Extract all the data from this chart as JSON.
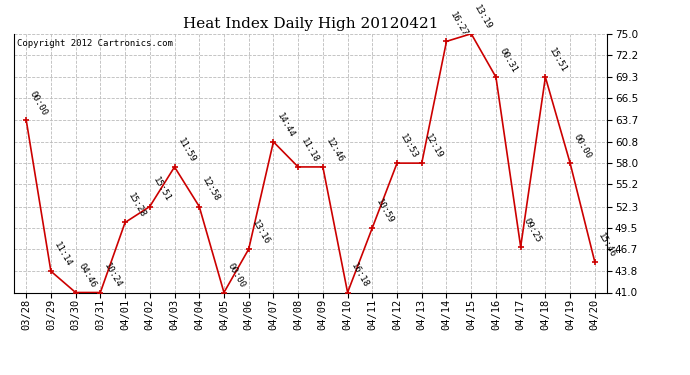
{
  "title": "Heat Index Daily High 20120421",
  "copyright": "Copyright 2012 Cartronics.com",
  "dates": [
    "03/28",
    "03/29",
    "03/30",
    "03/31",
    "04/01",
    "04/02",
    "04/03",
    "04/04",
    "04/05",
    "04/06",
    "04/07",
    "04/08",
    "04/09",
    "04/10",
    "04/11",
    "04/12",
    "04/13",
    "04/14",
    "04/15",
    "04/16",
    "04/17",
    "04/18",
    "04/19",
    "04/20"
  ],
  "values": [
    63.7,
    43.8,
    41.0,
    41.0,
    50.2,
    52.3,
    57.5,
    52.3,
    41.0,
    46.7,
    60.8,
    57.5,
    57.5,
    41.0,
    49.5,
    58.0,
    58.0,
    74.0,
    75.0,
    69.3,
    47.0,
    69.3,
    58.0,
    45.0
  ],
  "labels": [
    "00:00",
    "11:14",
    "04:46",
    "10:24",
    "15:28",
    "15:51",
    "11:59",
    "12:58",
    "00:00",
    "13:16",
    "14:44",
    "11:18",
    "12:46",
    "16:18",
    "10:59",
    "13:53",
    "12:19",
    "16:27",
    "13:19",
    "00:31",
    "09:25",
    "15:51",
    "00:00",
    "15:46"
  ],
  "ylim": [
    41.0,
    75.0
  ],
  "yticks": [
    41.0,
    43.8,
    46.7,
    49.5,
    52.3,
    55.2,
    58.0,
    60.8,
    63.7,
    66.5,
    69.3,
    72.2,
    75.0
  ],
  "line_color": "#cc0000",
  "marker_color": "#cc0000",
  "bg_color": "#ffffff",
  "grid_color": "#bbbbbb",
  "title_fontsize": 11,
  "label_fontsize": 6.5,
  "tick_fontsize": 7.5,
  "copyright_fontsize": 6.5
}
